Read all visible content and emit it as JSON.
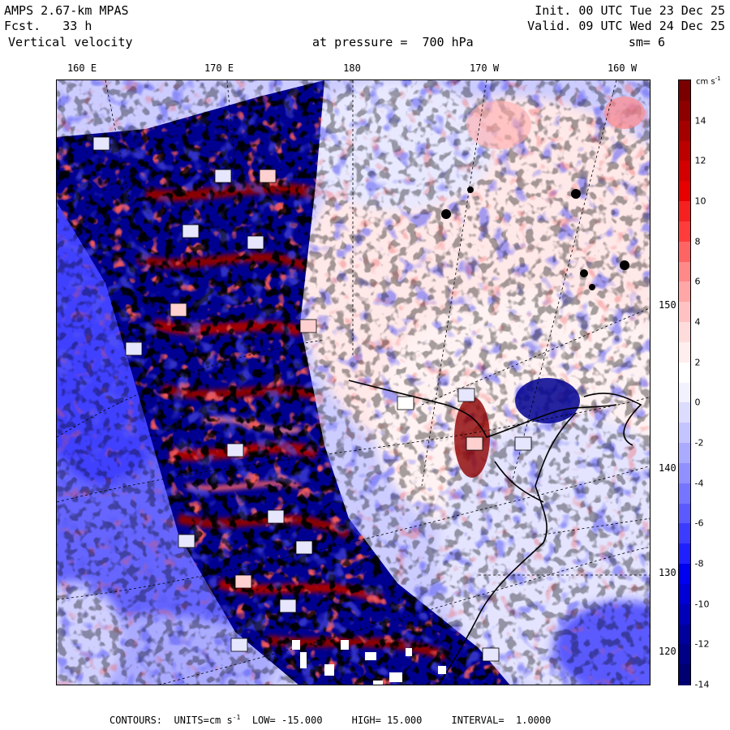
{
  "header": {
    "model": "AMPS 2.67-km MPAS",
    "fcst_label": "Fcst.",
    "fcst_value": "33 h",
    "field": "Vertical velocity",
    "level_label": "at pressure =",
    "level_value": "700 hPa",
    "init": "Init. 00 UTC Tue 23 Dec 25",
    "valid": "Valid. 09 UTC Wed 24 Dec 25",
    "smooth": "sm= 6"
  },
  "lon_labels": [
    "160 E",
    "170 E",
    "180",
    "170 W",
    "160 W"
  ],
  "lat_labels": [
    "150 W",
    "140 W",
    "130 W",
    "120 W"
  ],
  "colorbar": {
    "unit": "cm s",
    "unit_exp": "-1",
    "ticks": [
      "14",
      "12",
      "10",
      "8",
      "6",
      "4",
      "2",
      "0",
      "-2",
      "-4",
      "-6",
      "-8",
      "-10",
      "-12",
      "-14"
    ],
    "colors_top_to_bottom": [
      "#7a0000",
      "#8c0000",
      "#a50000",
      "#bc0000",
      "#d20000",
      "#e60000",
      "#f52020",
      "#ff3c3c",
      "#ff6464",
      "#ff8888",
      "#ffa6a6",
      "#ffc2c2",
      "#ffdcdc",
      "#ffeeee",
      "#ffffff",
      "#f2f2ff",
      "#dcdcff",
      "#c4c4ff",
      "#aaaaff",
      "#9090ff",
      "#7575ff",
      "#5a5aff",
      "#3c3cff",
      "#2020ff",
      "#0000f0",
      "#0000d4",
      "#0000b8",
      "#00009c",
      "#000084",
      "#000070"
    ],
    "colors": {
      "strong_up": "#8c0000",
      "weak_up": "#ffc2c2",
      "neutral": "#ffffff",
      "weak_down": "#c4c4ff",
      "strong_down": "#00009c"
    }
  },
  "footer": {
    "contours_label": "CONTOURS:",
    "units_label": "UNITS=cm s",
    "units_exp": "-1",
    "low_label": "LOW=",
    "low_value": "-15.000",
    "high_label": "HIGH=",
    "high_value": "15.000",
    "interval_label": "INTERVAL=",
    "interval_value": "1.0000"
  }
}
